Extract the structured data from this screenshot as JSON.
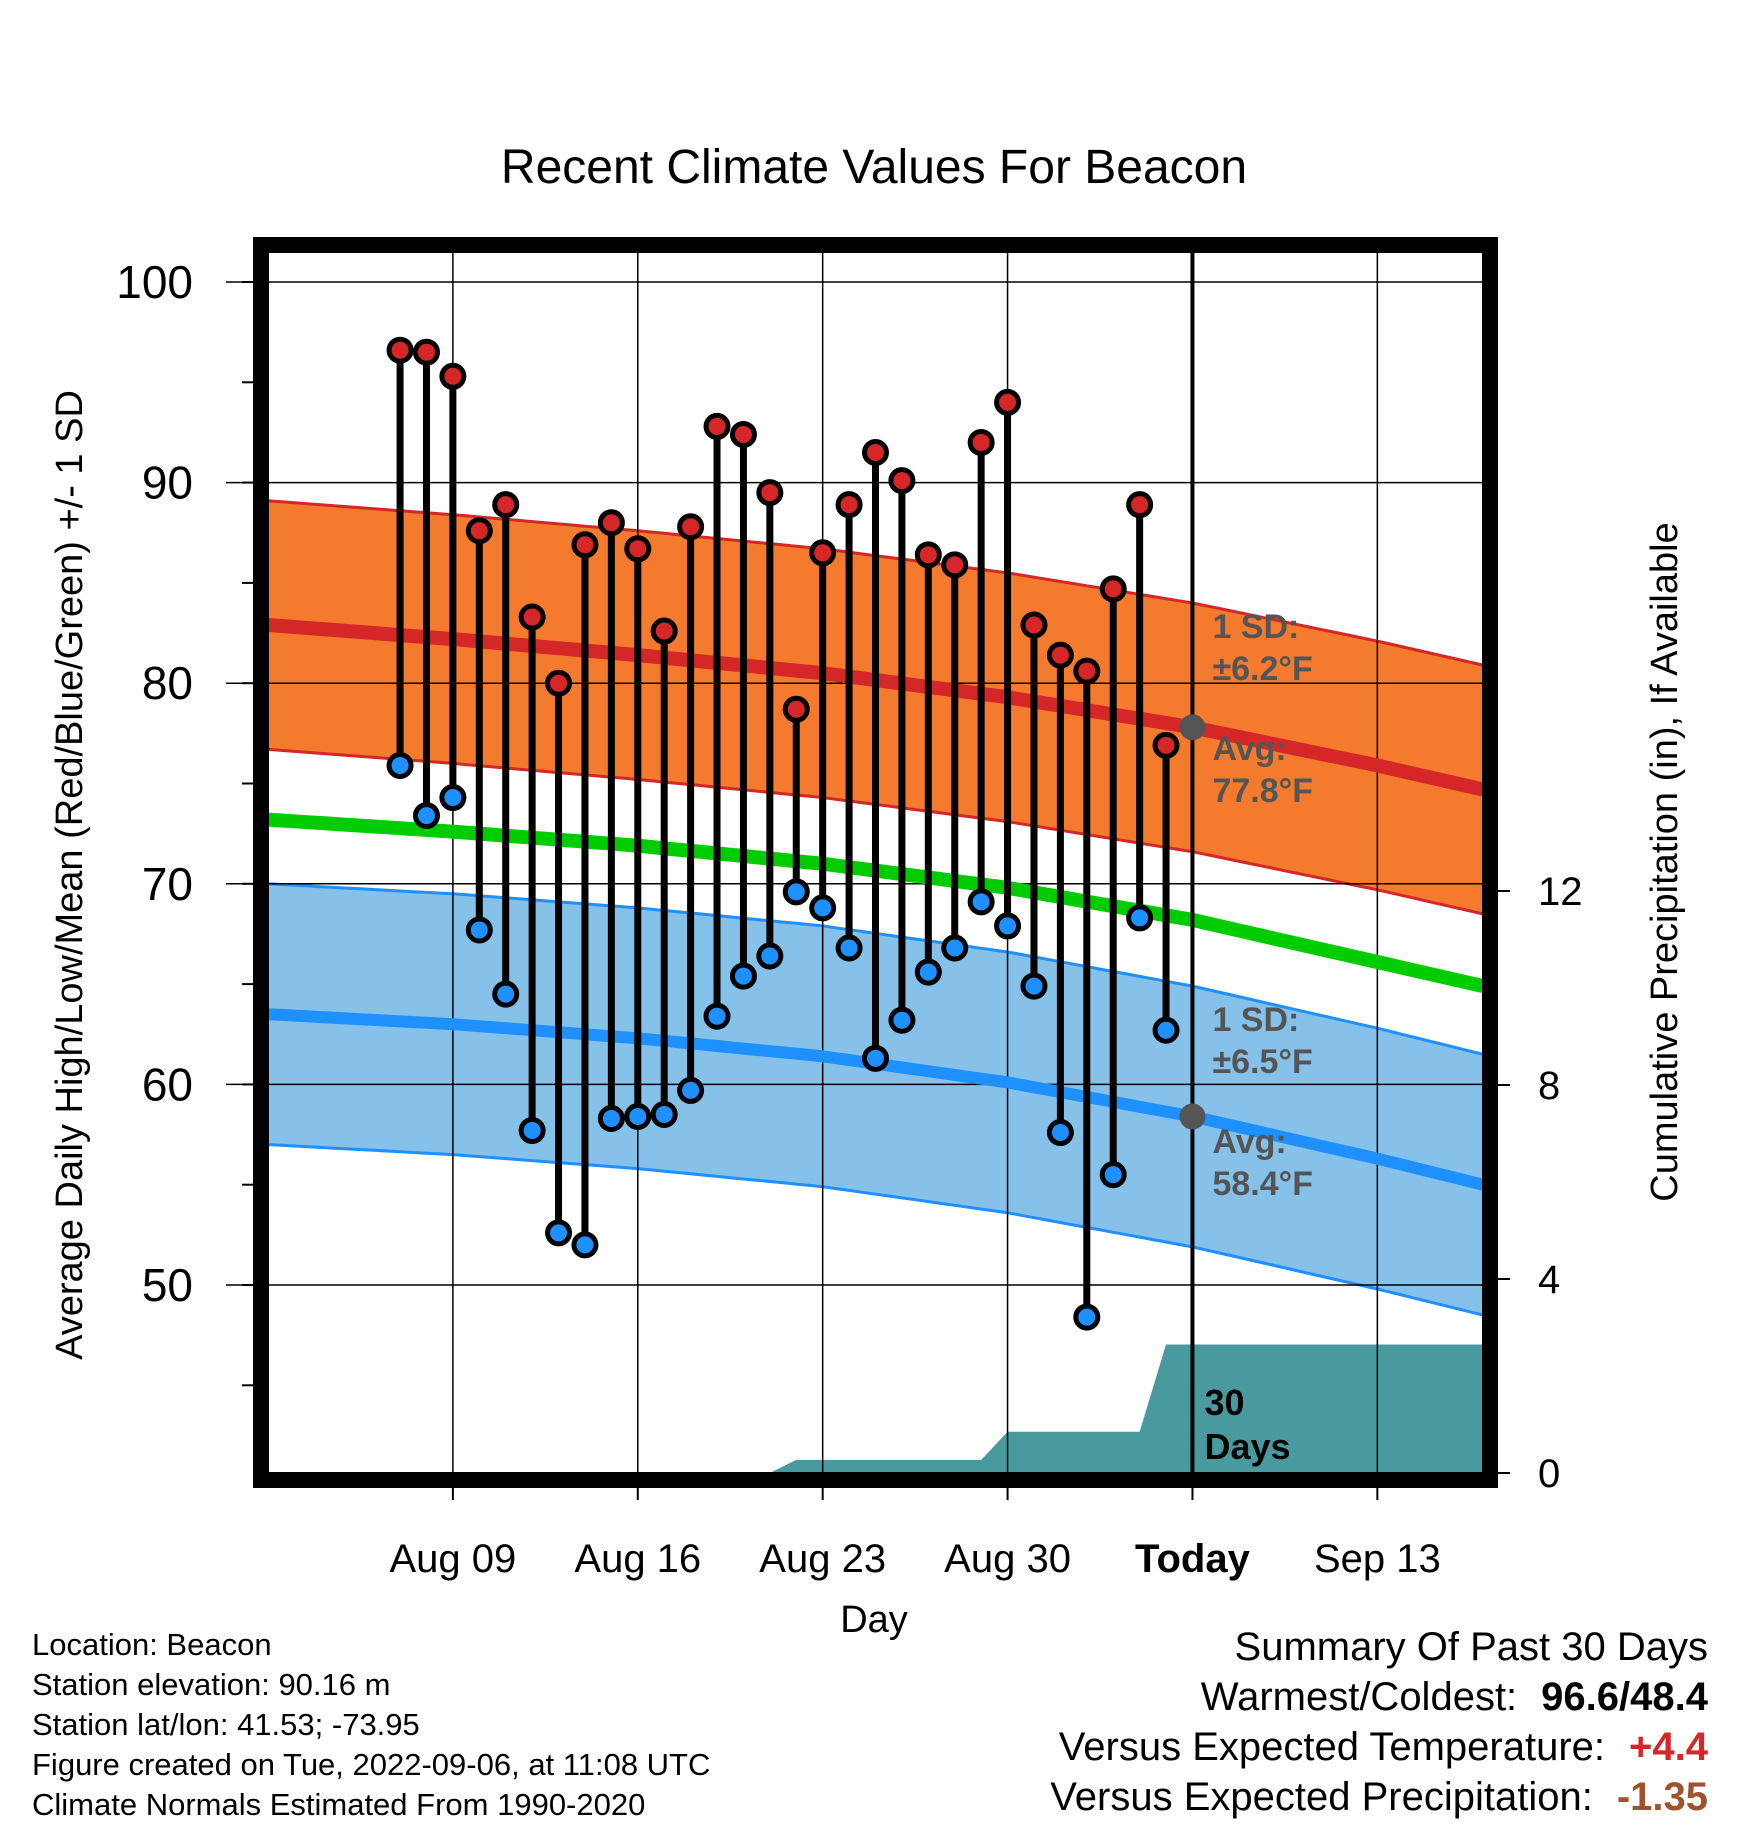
{
  "chart_data": {
    "type": "line",
    "title": "Recent Climate Values For Beacon",
    "xlabel": "Day",
    "ylabel": "Average Daily High/Low/Mean (Red/Blue/Green) +/- 1 SD",
    "y2label": "Cumulative Precipitation (in), If Available",
    "x_range_days": [
      -35,
      11
    ],
    "x_ticks": [
      {
        "day": -28,
        "label": "Aug 09"
      },
      {
        "day": -21,
        "label": "Aug 16"
      },
      {
        "day": -14,
        "label": "Aug 23"
      },
      {
        "day": -7,
        "label": "Aug 30"
      },
      {
        "day": 0,
        "label": "Today"
      },
      {
        "day": 7,
        "label": "Sep 13"
      }
    ],
    "ylim": [
      40,
      102
    ],
    "y_ticks": [
      50,
      60,
      70,
      80,
      90,
      100
    ],
    "y2lim": [
      0,
      16
    ],
    "y2_ticks": [
      0,
      4,
      8,
      12
    ],
    "grid": true,
    "today_day": 0,
    "daily_obs": {
      "day": [
        -30,
        -29,
        -28,
        -27,
        -26,
        -25,
        -24,
        -23,
        -22,
        -21,
        -20,
        -19,
        -18,
        -17,
        -16,
        -15,
        -14,
        -13,
        -12,
        -11,
        -10,
        -9,
        -8,
        -7,
        -6,
        -5,
        -4,
        -3,
        -2,
        -1
      ],
      "high": [
        96.6,
        96.5,
        95.3,
        87.6,
        88.9,
        83.3,
        80.0,
        86.9,
        88.0,
        86.7,
        82.6,
        87.8,
        92.8,
        92.4,
        89.5,
        78.7,
        86.5,
        88.9,
        91.5,
        90.1,
        86.4,
        85.9,
        92.0,
        94.0,
        82.9,
        81.4,
        80.6,
        84.7,
        88.9,
        76.9
      ],
      "low": [
        75.9,
        73.4,
        74.3,
        67.7,
        64.5,
        57.7,
        52.6,
        52.0,
        58.3,
        58.4,
        58.5,
        59.7,
        63.4,
        65.4,
        66.4,
        69.6,
        68.8,
        66.8,
        61.3,
        63.2,
        65.6,
        66.8,
        69.1,
        67.9,
        64.9,
        57.6,
        48.4,
        55.5,
        68.3,
        62.7
      ]
    },
    "normals": {
      "day": [
        -35,
        -28,
        -21,
        -14,
        -7,
        0,
        7,
        11
      ],
      "high_avg": [
        82.9,
        82.2,
        81.4,
        80.5,
        79.3,
        77.8,
        75.9,
        74.7
      ],
      "high_sd": 6.2,
      "low_avg": [
        63.5,
        63.0,
        62.3,
        61.4,
        60.1,
        58.4,
        56.3,
        55.0
      ],
      "low_sd": 6.5,
      "mean": [
        73.2,
        72.6,
        71.9,
        71.0,
        69.8,
        68.2,
        66.1,
        64.9
      ]
    },
    "cum_precip": {
      "day": [
        -35,
        -16,
        -15,
        -8,
        -7,
        -2,
        -1,
        11
      ],
      "value": [
        0,
        0,
        0.27,
        0.27,
        0.85,
        0.85,
        2.65,
        2.65
      ]
    },
    "annotations": {
      "high_sd_label": "1 SD:",
      "high_sd_value": "±6.2°F",
      "high_avg_label": "Avg:",
      "high_avg_value": "77.8°F",
      "low_sd_label": "1 SD:",
      "low_sd_value": "±6.5°F",
      "low_avg_label": "Avg:",
      "low_avg_value": "58.4°F",
      "window_label_1": "30",
      "window_label_2": "Days"
    },
    "colors": {
      "high_band": "#f47a2d",
      "high_line": "#d62728",
      "low_band": "#85c1e9",
      "low_line": "#1e90ff",
      "mean_line": "#00cc00",
      "precip": "#489a9f",
      "high_dot": "#d62728",
      "low_dot": "#1e90ff",
      "annotation": "#555555",
      "temp_diff": "#d62728",
      "precip_diff": "#a0522d"
    }
  },
  "meta": {
    "location": "Location: Beacon",
    "elevation": "Station elevation: 90.16 m",
    "latlon": "Station lat/lon: 41.53; -73.95",
    "created": "Figure created on Tue, 2022-09-06, at 11:08 UTC",
    "normals": "Climate Normals Estimated From 1990-2020"
  },
  "summary": {
    "heading": "Summary Of Past 30 Days",
    "warm_cold_label": "Warmest/Coldest:",
    "warm_cold_value": "96.6/48.4",
    "temp_label": "Versus Expected Temperature:",
    "temp_value": "+4.4",
    "precip_label": "Versus Expected Precipitation:",
    "precip_value": "-1.35"
  }
}
